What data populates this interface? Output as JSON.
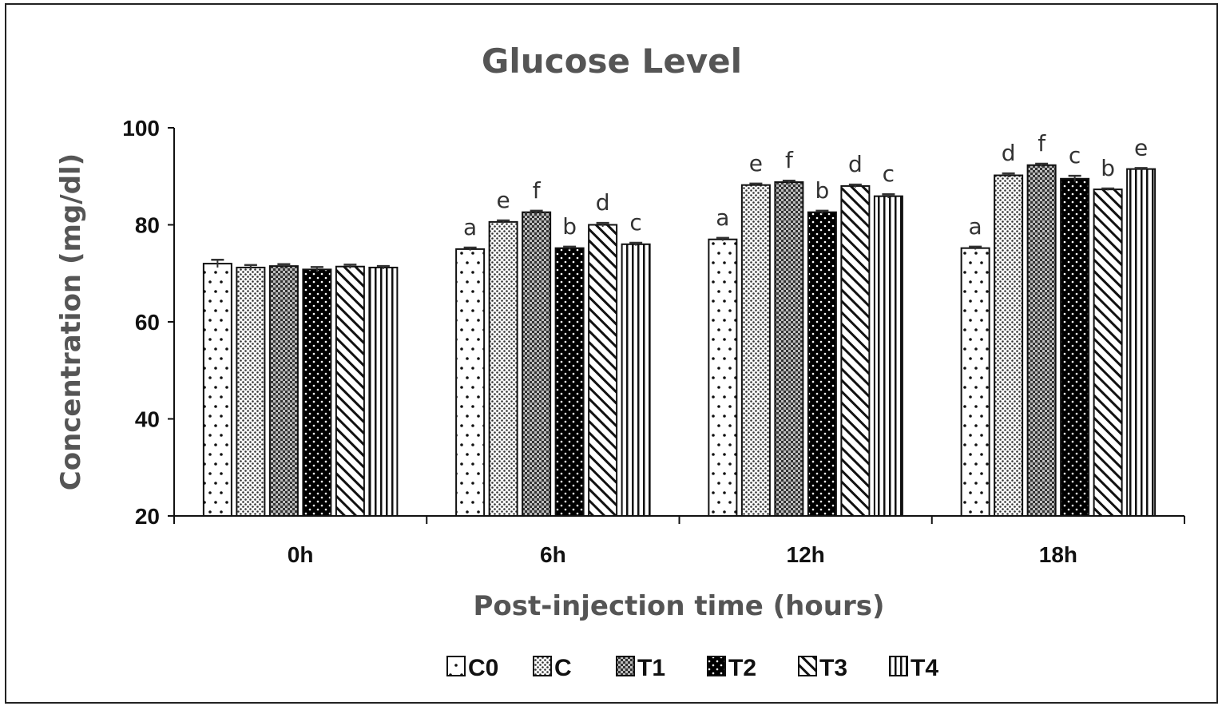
{
  "chart_data": {
    "type": "bar",
    "title": "Glucose Level",
    "xlabel": "Post-injection time (hours)",
    "ylabel": "Concentration (mg/dl)",
    "ylim": [
      20,
      100
    ],
    "yticks": [
      "20",
      "40",
      "60",
      "80",
      "100"
    ],
    "grid": false,
    "legend_position": "bottom",
    "categories": [
      "0h",
      "6h",
      "12h",
      "18h"
    ],
    "series": [
      {
        "name": "C0",
        "pattern": "sparse-dots",
        "values": [
          72,
          75,
          77,
          75.2
        ],
        "errors": [
          0.8,
          0.3,
          0.3,
          0.3
        ],
        "letters": [
          "",
          "a",
          "a",
          "a"
        ]
      },
      {
        "name": "C",
        "pattern": "fine-dots",
        "values": [
          71.2,
          80.6,
          88.2,
          90.2
        ],
        "errors": [
          0.5,
          0.3,
          0.3,
          0.4
        ],
        "letters": [
          "",
          "e",
          "e",
          "d"
        ]
      },
      {
        "name": "T1",
        "pattern": "checker",
        "values": [
          71.5,
          82.6,
          88.8,
          92.3
        ],
        "errors": [
          0.4,
          0.3,
          0.3,
          0.3
        ],
        "letters": [
          "",
          "f",
          "f",
          "f"
        ]
      },
      {
        "name": "T2",
        "pattern": "dark-dots",
        "values": [
          70.8,
          75.2,
          82.6,
          89.5
        ],
        "errors": [
          0.5,
          0.3,
          0.3,
          0.6
        ],
        "letters": [
          "",
          "b",
          "b",
          "c"
        ]
      },
      {
        "name": "T3",
        "pattern": "diagonal",
        "values": [
          71.4,
          80,
          88,
          87.3
        ],
        "errors": [
          0.4,
          0.4,
          0.3,
          0.2
        ],
        "letters": [
          "",
          "d",
          "d",
          "b"
        ]
      },
      {
        "name": "T4",
        "pattern": "vertical",
        "values": [
          71.2,
          76,
          85.9,
          91.5
        ],
        "errors": [
          0.3,
          0.3,
          0.4,
          0.2
        ],
        "letters": [
          "",
          "c",
          "c",
          "e"
        ]
      }
    ]
  }
}
